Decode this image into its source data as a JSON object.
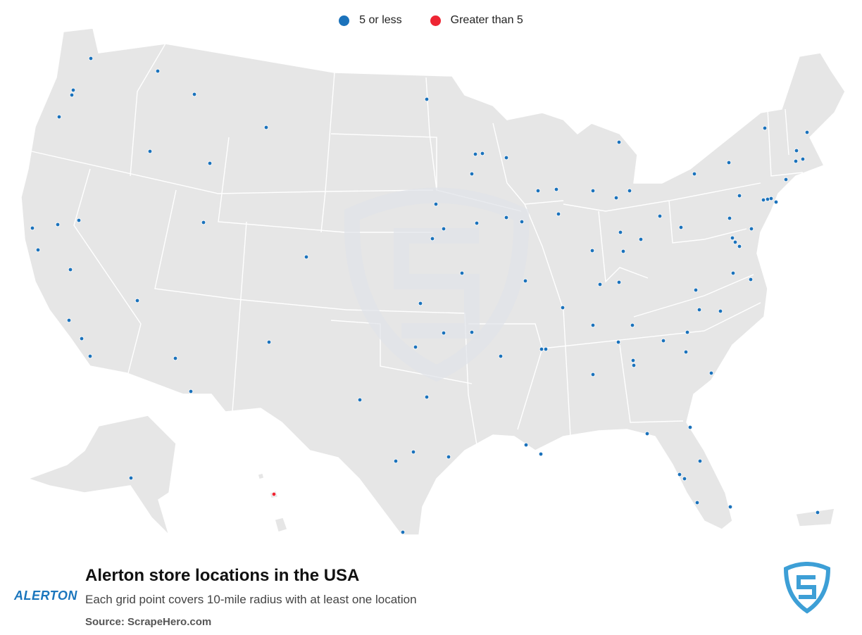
{
  "legend": {
    "items": [
      {
        "label": "5 or less",
        "color": "#1b72bb"
      },
      {
        "label": "Greater than 5",
        "color": "#ee2533"
      }
    ]
  },
  "footer": {
    "title": "Alerton store locations in the USA",
    "subtitle": "Each grid point covers 10-mile radius with at least one location",
    "source": "Source: ScrapeHero.com"
  },
  "brand": {
    "logo_text": "ALERTON"
  },
  "colors": {
    "land": "#e6e6e6",
    "state_border": "#ffffff",
    "watermark": "#dfe3e8",
    "shield": "#3d9fd6"
  },
  "map_data": {
    "points_small": [
      [
        129,
        83
      ],
      [
        224,
        101
      ],
      [
        104,
        128
      ],
      [
        102,
        135
      ],
      [
        276,
        134
      ],
      [
        84,
        166
      ],
      [
        213,
        215
      ],
      [
        298,
        232
      ],
      [
        378,
        181
      ],
      [
        606,
        141
      ],
      [
        675,
        219
      ],
      [
        685,
        218
      ],
      [
        719,
        224
      ],
      [
        670,
        247
      ],
      [
        764,
        271
      ],
      [
        790,
        269
      ],
      [
        879,
        202
      ],
      [
        842,
        271
      ],
      [
        875,
        281
      ],
      [
        894,
        271
      ],
      [
        1086,
        182
      ],
      [
        1146,
        188
      ],
      [
        1035,
        231
      ],
      [
        986,
        247
      ],
      [
        1131,
        214
      ],
      [
        1140,
        226
      ],
      [
        1130,
        229
      ],
      [
        1116,
        255
      ],
      [
        46,
        324
      ],
      [
        82,
        319
      ],
      [
        112,
        313
      ],
      [
        54,
        355
      ],
      [
        100,
        383
      ],
      [
        289,
        316
      ],
      [
        435,
        365
      ],
      [
        619,
        290
      ],
      [
        630,
        325
      ],
      [
        614,
        339
      ],
      [
        677,
        317
      ],
      [
        719,
        309
      ],
      [
        741,
        315
      ],
      [
        656,
        388
      ],
      [
        746,
        399
      ],
      [
        793,
        304
      ],
      [
        1050,
        278
      ],
      [
        1084,
        284
      ],
      [
        1090,
        283
      ],
      [
        1095,
        282
      ],
      [
        1102,
        287
      ],
      [
        1036,
        310
      ],
      [
        1067,
        325
      ],
      [
        967,
        323
      ],
      [
        937,
        307
      ],
      [
        881,
        330
      ],
      [
        910,
        340
      ],
      [
        885,
        357
      ],
      [
        841,
        356
      ],
      [
        1040,
        338
      ],
      [
        1044,
        344
      ],
      [
        1050,
        350
      ],
      [
        1041,
        388
      ],
      [
        1066,
        397
      ],
      [
        988,
        412
      ],
      [
        195,
        427
      ],
      [
        98,
        455
      ],
      [
        116,
        481
      ],
      [
        128,
        506
      ],
      [
        249,
        509
      ],
      [
        271,
        556
      ],
      [
        382,
        486
      ],
      [
        597,
        431
      ],
      [
        630,
        473
      ],
      [
        670,
        472
      ],
      [
        590,
        493
      ],
      [
        711,
        506
      ],
      [
        799,
        437
      ],
      [
        852,
        404
      ],
      [
        879,
        401
      ],
      [
        842,
        462
      ],
      [
        898,
        462
      ],
      [
        878,
        486
      ],
      [
        769,
        496
      ],
      [
        775,
        496
      ],
      [
        899,
        512
      ],
      [
        900,
        519
      ],
      [
        842,
        532
      ],
      [
        942,
        484
      ],
      [
        976,
        472
      ],
      [
        974,
        500
      ],
      [
        993,
        440
      ],
      [
        1023,
        442
      ],
      [
        1010,
        530
      ],
      [
        511,
        568
      ],
      [
        606,
        564
      ],
      [
        587,
        642
      ],
      [
        562,
        655
      ],
      [
        637,
        649
      ],
      [
        747,
        632
      ],
      [
        768,
        645
      ],
      [
        919,
        616
      ],
      [
        980,
        607
      ],
      [
        994,
        655
      ],
      [
        965,
        674
      ],
      [
        972,
        680
      ],
      [
        990,
        714
      ],
      [
        1037,
        720
      ],
      [
        186,
        679
      ],
      [
        572,
        756
      ],
      [
        1161,
        728
      ]
    ],
    "points_large": [
      [
        389,
        702
      ]
    ]
  }
}
